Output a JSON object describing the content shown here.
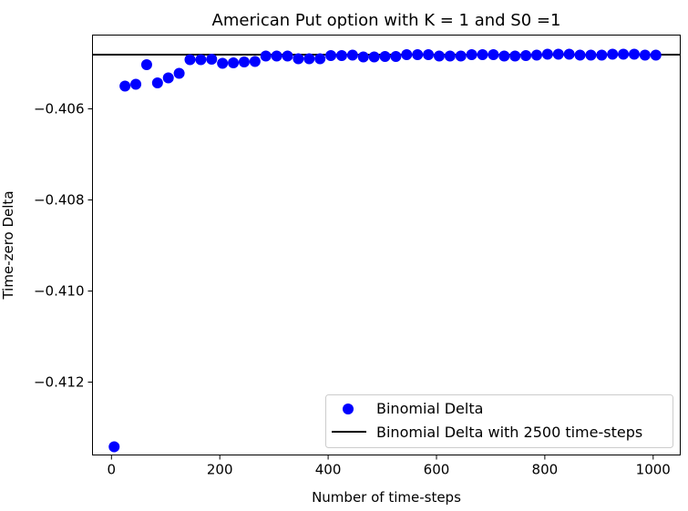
{
  "chart_data": {
    "type": "scatter",
    "title": "American Put option with K = 1 and S0 =1",
    "xlabel": "Number of time-steps",
    "ylabel": "Time-zero Delta",
    "xlim": [
      -35,
      1050
    ],
    "ylim": [
      -0.4136,
      -0.40438
    ],
    "x_ticks": [
      0,
      200,
      400,
      600,
      800,
      1000
    ],
    "x_tick_labels": [
      "0",
      "200",
      "400",
      "600",
      "800",
      "1000"
    ],
    "y_ticks": [
      -0.406,
      -0.408,
      -0.41,
      -0.412
    ],
    "y_tick_labels": [
      "−0.406",
      "−0.408",
      "−0.410",
      "−0.412"
    ],
    "grid": false,
    "legend_position": "lower-right",
    "series": [
      {
        "name": "Binomial Delta",
        "kind": "points",
        "color": "#0000ff",
        "x": [
          5,
          25,
          45,
          65,
          85,
          105,
          125,
          145,
          165,
          185,
          205,
          225,
          245,
          265,
          285,
          305,
          325,
          345,
          365,
          385,
          405,
          425,
          445,
          465,
          485,
          505,
          525,
          545,
          565,
          585,
          605,
          625,
          645,
          665,
          685,
          705,
          725,
          745,
          765,
          785,
          805,
          825,
          845,
          865,
          885,
          905,
          925,
          945,
          965,
          985,
          1005
        ],
        "y": [
          -0.41342,
          -0.4055,
          -0.40546,
          -0.40503,
          -0.40543,
          -0.40532,
          -0.40522,
          -0.40492,
          -0.40492,
          -0.40491,
          -0.405,
          -0.40499,
          -0.40497,
          -0.40496,
          -0.40484,
          -0.40484,
          -0.40484,
          -0.4049,
          -0.4049,
          -0.4049,
          -0.40483,
          -0.40483,
          -0.40482,
          -0.40486,
          -0.40486,
          -0.40485,
          -0.40485,
          -0.40481,
          -0.40481,
          -0.40481,
          -0.40484,
          -0.40484,
          -0.40484,
          -0.40481,
          -0.40481,
          -0.40481,
          -0.40484,
          -0.40484,
          -0.40483,
          -0.40482,
          -0.4048,
          -0.4048,
          -0.4048,
          -0.40482,
          -0.40482,
          -0.40482,
          -0.4048,
          -0.4048,
          -0.4048,
          -0.40482,
          -0.40482
        ]
      },
      {
        "name": "Binomial Delta with 2500 time-steps",
        "kind": "hline",
        "color": "#000000",
        "y": -0.40481
      }
    ]
  }
}
